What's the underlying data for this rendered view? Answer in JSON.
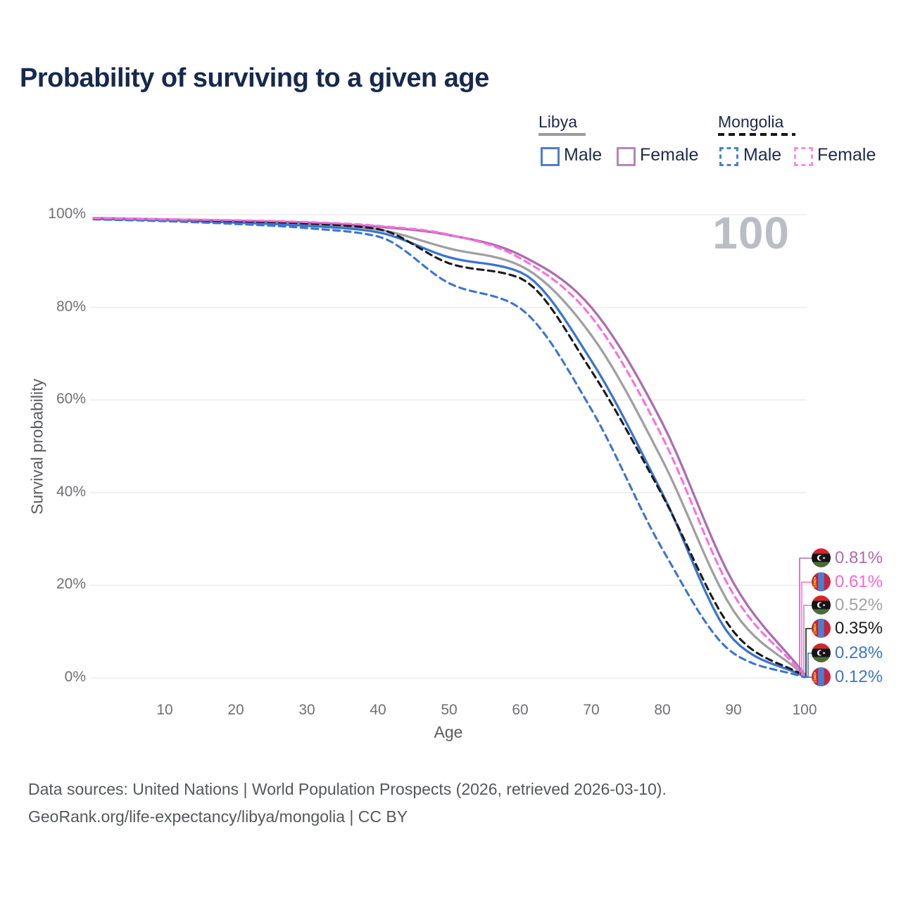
{
  "title": "Probability of surviving to a given age",
  "watermark": "100",
  "legend": {
    "groups": [
      {
        "country": "Libya",
        "line_style": "solid",
        "underline_color": "#9c9c9c",
        "items": [
          {
            "label": "Male",
            "color": "#4a7fd0"
          },
          {
            "label": "Female",
            "color": "#b287ba"
          }
        ]
      },
      {
        "country": "Mongolia",
        "line_style": "dashed",
        "underline_color": "#161616",
        "items": [
          {
            "label": "Male",
            "color": "#4a7fd0"
          },
          {
            "label": "Female",
            "color": "#ff8ae2"
          }
        ]
      }
    ]
  },
  "chart_data": {
    "type": "line",
    "title": "Probability of surviving to a given age",
    "xlabel": "Age",
    "ylabel": "Survival probability",
    "xlim": [
      0,
      100
    ],
    "ylim": [
      0,
      100
    ],
    "grid": "horizontal",
    "x_ticks": [
      "10",
      "20",
      "30",
      "40",
      "50",
      "60",
      "70",
      "80",
      "90",
      "100"
    ],
    "y_ticks": [
      "0%",
      "20%",
      "40%",
      "60%",
      "80%",
      "100%"
    ],
    "x": [
      0,
      10,
      20,
      30,
      40,
      50,
      60,
      70,
      80,
      90,
      100
    ],
    "series": [
      {
        "name": "Libya Female",
        "country": "Libya",
        "sex": "Female",
        "style": "solid",
        "color": "#ad6cb2",
        "flag": "libya",
        "end_label": "0.81%",
        "end_label_color": "#b16bac",
        "values": [
          99.3,
          99.0,
          98.7,
          98.3,
          97.4,
          95.6,
          91.3,
          80.0,
          55.0,
          20.5,
          0.81
        ]
      },
      {
        "name": "Mongolia Female",
        "country": "Mongolia",
        "sex": "Female",
        "style": "dashed",
        "color": "#fc6fdc",
        "flag": "mongolia",
        "end_label": "0.61%",
        "end_label_color": "#ff63d6",
        "values": [
          99.3,
          99.0,
          98.8,
          98.4,
          97.6,
          95.7,
          90.6,
          78.0,
          52.0,
          18.0,
          0.61
        ]
      },
      {
        "name": "Libya Both sexes",
        "country": "Libya",
        "sex": "Both",
        "style": "solid",
        "color": "#a0a0a3",
        "flag": "libya",
        "end_label": "0.52%",
        "end_label_color": "#a2a2a2",
        "values": [
          99.2,
          98.9,
          98.5,
          98.0,
          96.8,
          92.7,
          89.0,
          74.0,
          47.0,
          14.5,
          0.52
        ]
      },
      {
        "name": "Mongolia Both sexes",
        "country": "Mongolia",
        "sex": "Both",
        "style": "dashed",
        "color": "#1a1a1a",
        "flag": "mongolia",
        "end_label": "0.35%",
        "end_label_color": "#1a1a1a",
        "values": [
          99.2,
          98.9,
          98.6,
          98.1,
          96.9,
          89.5,
          86.3,
          66.3,
          39.4,
          10.0,
          0.35
        ]
      },
      {
        "name": "Libya Male",
        "country": "Libya",
        "sex": "Male",
        "style": "solid",
        "color": "#3b74d1",
        "flag": "libya",
        "end_label": "0.28%",
        "end_label_color": "#3d74d1",
        "values": [
          99.1,
          98.8,
          98.3,
          97.6,
          96.2,
          90.8,
          87.6,
          68.5,
          39.8,
          8.3,
          0.28
        ]
      },
      {
        "name": "Mongolia Male",
        "country": "Mongolia",
        "sex": "Male",
        "style": "dashed",
        "color": "#3b74d1",
        "flag": "mongolia",
        "end_label": "0.12%",
        "end_label_color": "#3d74d1",
        "values": [
          99.0,
          98.6,
          98.0,
          97.1,
          95.3,
          85.2,
          79.8,
          58.0,
          27.8,
          5.3,
          0.12
        ]
      }
    ],
    "legend_position": "top-right",
    "colors": {
      "grid": "#e9eaeb",
      "axis_text": "#6e7073",
      "title_text": "#16294e",
      "watermark": "#babdc4"
    }
  },
  "footer": {
    "line1": "Data sources: United Nations | World Population Prospects (2026, retrieved 2026-03-10).",
    "line2": "GeoRank.org/life-expectancy/libya/mongolia | CC BY"
  }
}
